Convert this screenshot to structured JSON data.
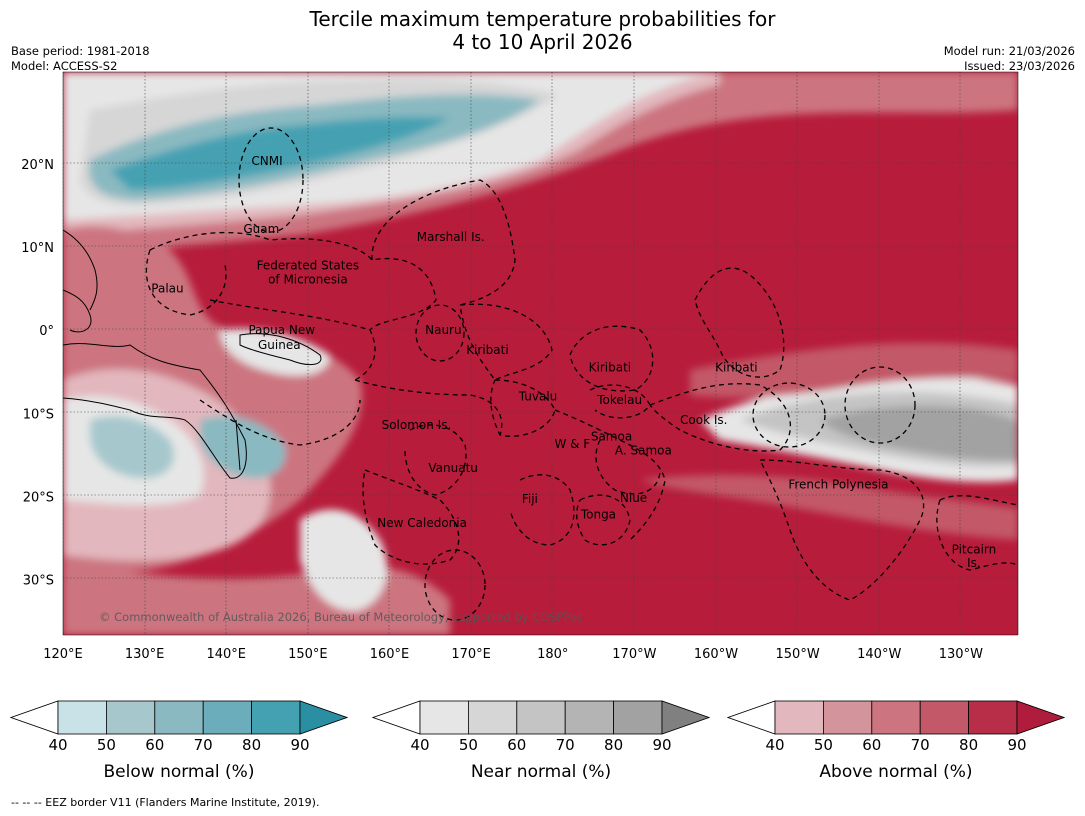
{
  "title_line1": "Tercile maximum temperature probabilities for",
  "title_line2": "4 to 10 April 2026",
  "base_period": "Base period: 1981-2018",
  "model": "Model: ACCESS-S2",
  "model_run": "Model run: 21/03/2026",
  "issued": "Issued: 23/03/2026",
  "copyright": "© Commonwealth of Australia 2026, Bureau of Meteorology, supported by COSPPac",
  "footer_note": "--  --  -- EEZ border V11 (Flanders Marine Institute, 2019).",
  "lat_ticks": [
    "20°N",
    "10°N",
    "0°",
    "10°S",
    "20°S",
    "30°S"
  ],
  "lon_ticks": [
    "120°E",
    "130°E",
    "140°E",
    "150°E",
    "160°E",
    "170°E",
    "180°",
    "170°W",
    "160°W",
    "150°W",
    "140°W",
    "130°W"
  ],
  "regions": [
    {
      "name": "CNMI",
      "lon": 145.0,
      "lat": 20.4
    },
    {
      "name": "Guam",
      "lon": 144.3,
      "lat": 12.2
    },
    {
      "name": "Marshall Is.",
      "lon": 167.5,
      "lat": 11.2
    },
    {
      "name": "Federated States",
      "lon": 150.0,
      "lat": 7.8
    },
    {
      "name": "of Micronesia",
      "lon": 150.0,
      "lat": 6.1
    },
    {
      "name": "Palau",
      "lon": 132.8,
      "lat": 5.0
    },
    {
      "name": "Papua New",
      "lon": 146.8,
      "lat": 0.0
    },
    {
      "name": "Guinea",
      "lon": 146.5,
      "lat": -1.8
    },
    {
      "name": "Nauru",
      "lon": 166.6,
      "lat": 0.0
    },
    {
      "name": "Kiribati",
      "lon": 172.0,
      "lat": -2.4
    },
    {
      "name": "Kiribati",
      "lon": -173.0,
      "lat": -4.5
    },
    {
      "name": "Kiribati",
      "lon": -157.5,
      "lat": -4.5
    },
    {
      "name": "Tuvalu",
      "lon": 178.2,
      "lat": -8.0
    },
    {
      "name": "Tokelau",
      "lon": -171.8,
      "lat": -8.4
    },
    {
      "name": "Cook Is.",
      "lon": -161.5,
      "lat": -10.8
    },
    {
      "name": "Solomon Is.",
      "lon": 163.3,
      "lat": -11.4
    },
    {
      "name": "Samoa",
      "lon": -172.8,
      "lat": -12.8
    },
    {
      "name": "W & F",
      "lon": -177.6,
      "lat": -13.7
    },
    {
      "name": "A. Samoa",
      "lon": -168.9,
      "lat": -14.5
    },
    {
      "name": "Vanuatu",
      "lon": 167.8,
      "lat": -16.6
    },
    {
      "name": "Fiji",
      "lon": 177.2,
      "lat": -20.3
    },
    {
      "name": "Niue",
      "lon": -170.1,
      "lat": -20.2
    },
    {
      "name": "French Polynesia",
      "lon": -145.0,
      "lat": -18.6
    },
    {
      "name": "Tonga",
      "lon": -174.4,
      "lat": -22.2
    },
    {
      "name": "New Caledonia",
      "lon": 164.0,
      "lat": -23.2
    },
    {
      "name": "Pitcairn",
      "lon": -128.4,
      "lat": -26.4
    },
    {
      "name": "Is.",
      "lon": -128.4,
      "lat": -28.0
    }
  ],
  "colorbars": [
    {
      "label": "Below normal (%)",
      "colors": [
        "#c8e2e8",
        "#a6c8cd",
        "#8ab9c1",
        "#6cadbc",
        "#44a1b2",
        "#2a8fa3"
      ],
      "ticks": [
        "40",
        "50",
        "60",
        "70",
        "80",
        "90"
      ]
    },
    {
      "label": "Near normal (%)",
      "colors": [
        "#e6e6e6",
        "#d6d6d6",
        "#c4c4c4",
        "#b4b4b4",
        "#a2a2a2",
        "#808080"
      ],
      "ticks": [
        "40",
        "50",
        "60",
        "70",
        "80",
        "90"
      ]
    },
    {
      "label": "Above normal (%)",
      "colors": [
        "#e2b7bd",
        "#d3949c",
        "#cc7580",
        "#c35868",
        "#b82d47",
        "#b01d3c"
      ],
      "ticks": [
        "40",
        "50",
        "60",
        "70",
        "80",
        "90"
      ]
    }
  ]
}
